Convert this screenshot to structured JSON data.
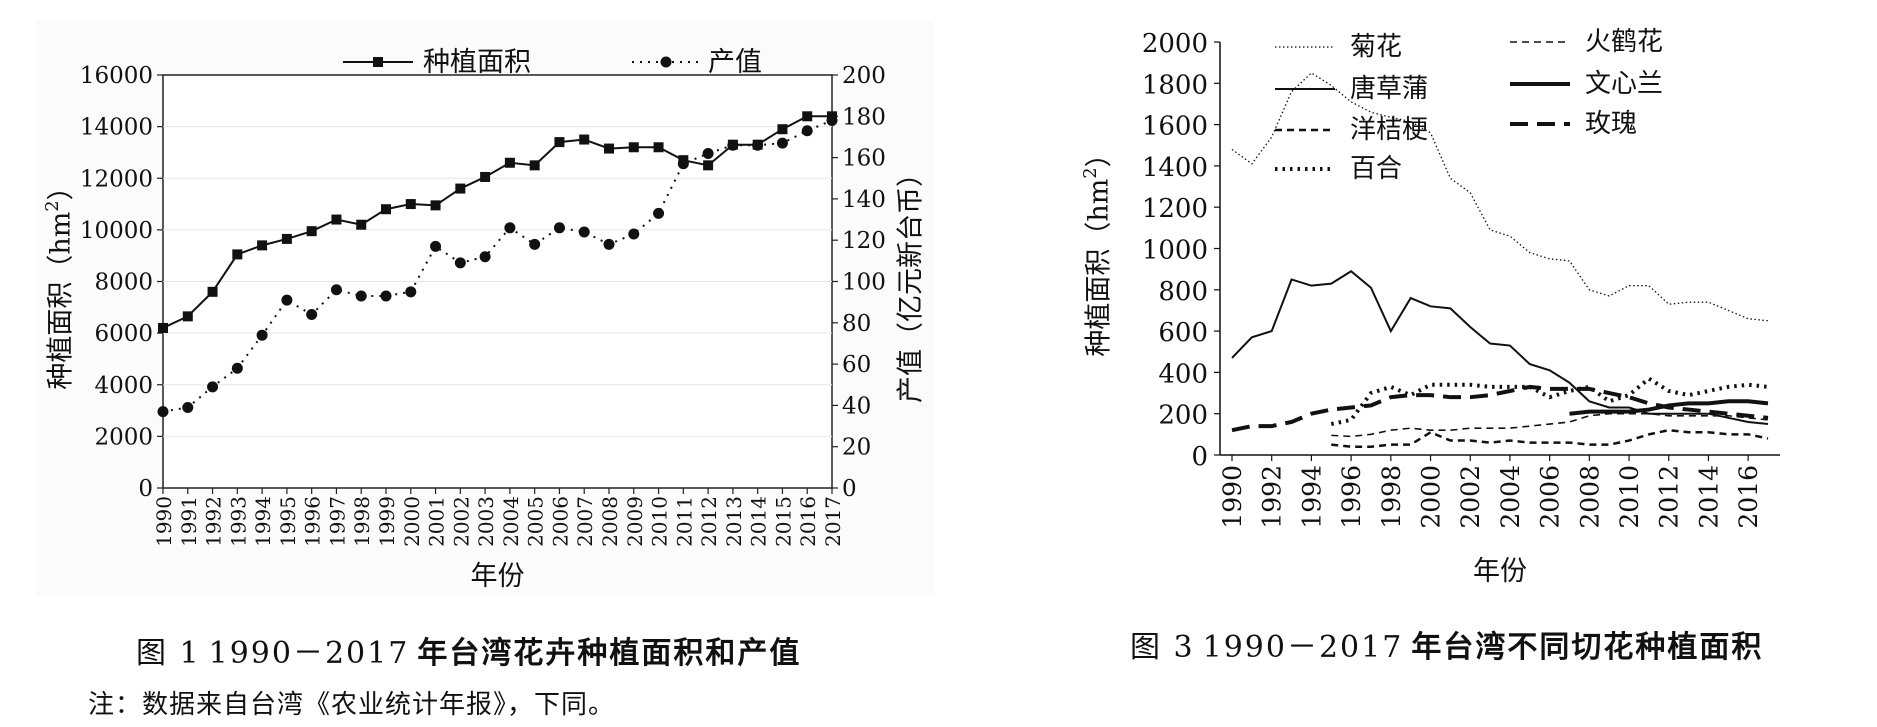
{
  "figure1": {
    "caption_label": "图 1",
    "caption_years": "1990－2017",
    "caption_text": "年台湾花卉种植面积和产值",
    "chart_data": {
      "type": "line",
      "x": [
        1990,
        1991,
        1992,
        1993,
        1994,
        1995,
        1996,
        1997,
        1998,
        1999,
        2000,
        2001,
        2002,
        2003,
        2004,
        2005,
        2006,
        2007,
        2008,
        2009,
        2010,
        2011,
        2012,
        2013,
        2014,
        2015,
        2016,
        2017
      ],
      "xlabel": "年份",
      "ylabel": "种植面积（hm²）",
      "y2label": "产值（亿元新台币）",
      "ylim": [
        0,
        16000
      ],
      "y2lim": [
        0,
        200
      ],
      "yticks": [
        "0",
        "2000",
        "4000",
        "6000",
        "8000",
        "10000",
        "12000",
        "14000",
        "16000"
      ],
      "y2ticks": [
        "0",
        "20",
        "40",
        "60",
        "80",
        "100",
        "120",
        "140",
        "160",
        "180",
        "200"
      ],
      "legend_placement": "top",
      "series": [
        {
          "name": "种植面积",
          "axis": "left",
          "style": "solid-square",
          "values": [
            6200,
            6650,
            7600,
            9050,
            9400,
            9650,
            9950,
            10400,
            10200,
            10800,
            11000,
            10950,
            11600,
            12050,
            12600,
            12500,
            13400,
            13500,
            13150,
            13200,
            13200,
            12700,
            12500,
            13300,
            13300,
            13900,
            14400,
            14400
          ]
        },
        {
          "name": "产值",
          "axis": "right",
          "style": "dotted-circle",
          "values": [
            37,
            39,
            49,
            58,
            74,
            91,
            84,
            96,
            93,
            93,
            95,
            117,
            109,
            112,
            126,
            118,
            126,
            124,
            118,
            123,
            133,
            157,
            162,
            166,
            166,
            167,
            173,
            178
          ]
        }
      ]
    }
  },
  "figure3": {
    "caption_label": "图 3",
    "caption_years": "1990－2017",
    "caption_text": "年台湾不同切花种植面积",
    "chart_data": {
      "type": "line",
      "xlabel": "年份",
      "ylabel": "种植面积（hm²）",
      "ylim": [
        0,
        2000
      ],
      "yticks": [
        "0",
        "200",
        "400",
        "600",
        "800",
        "1000",
        "1200",
        "1400",
        "1600",
        "1800",
        "2000"
      ],
      "xticks": [
        "1990",
        "1992",
        "1994",
        "1996",
        "1998",
        "2000",
        "2002",
        "2004",
        "2006",
        "2008",
        "2010",
        "2012",
        "2014",
        "2016"
      ],
      "legend_placement": "top-right",
      "series": [
        {
          "name": "菊花",
          "style": "fine-dot",
          "x": [
            1990,
            1991,
            1992,
            1993,
            1994,
            1995,
            1996,
            1997,
            1998,
            1999,
            2000,
            2001,
            2002,
            2003,
            2004,
            2005,
            2006,
            2007,
            2008,
            2009,
            2010,
            2011,
            2012,
            2013,
            2014,
            2015,
            2016,
            2017
          ],
          "values": [
            1480,
            1410,
            1540,
            1760,
            1850,
            1790,
            1710,
            1660,
            1635,
            1615,
            1560,
            1340,
            1270,
            1090,
            1060,
            980,
            950,
            940,
            800,
            770,
            820,
            820,
            730,
            740,
            740,
            700,
            660,
            650
          ]
        },
        {
          "name": "唐草蒲",
          "style": "solid",
          "x": [
            1990,
            1991,
            1992,
            1993,
            1994,
            1995,
            1996,
            1997,
            1998,
            1999,
            2000,
            2001,
            2002,
            2003,
            2004,
            2005,
            2006,
            2007,
            2008,
            2009,
            2010,
            2011,
            2012,
            2013,
            2014,
            2015,
            2016,
            2017
          ],
          "values": [
            470,
            570,
            600,
            850,
            820,
            830,
            890,
            810,
            600,
            760,
            720,
            710,
            620,
            540,
            530,
            440,
            410,
            350,
            260,
            230,
            230,
            200,
            200,
            200,
            200,
            180,
            160,
            150
          ]
        },
        {
          "name": "洋桔梗",
          "style": "short-dash",
          "x": [
            1995,
            1996,
            1997,
            1998,
            1999,
            2000,
            2001,
            2002,
            2003,
            2004,
            2005,
            2006,
            2007,
            2008,
            2009,
            2010,
            2011,
            2012,
            2013,
            2014,
            2015,
            2016,
            2017
          ],
          "values": [
            50,
            40,
            40,
            50,
            50,
            110,
            70,
            70,
            60,
            70,
            60,
            60,
            60,
            50,
            50,
            70,
            100,
            120,
            110,
            110,
            100,
            100,
            80
          ]
        },
        {
          "name": "百合",
          "style": "dot",
          "x": [
            1995,
            1996,
            1997,
            1998,
            1999,
            2000,
            2001,
            2002,
            2003,
            2004,
            2005,
            2006,
            2007,
            2008,
            2009,
            2010,
            2011,
            2012,
            2013,
            2014,
            2015,
            2016,
            2017
          ],
          "values": [
            150,
            170,
            300,
            330,
            290,
            340,
            340,
            340,
            330,
            330,
            330,
            280,
            310,
            330,
            260,
            290,
            370,
            310,
            290,
            310,
            330,
            340,
            330
          ]
        },
        {
          "name": "火鹤花",
          "style": "dash",
          "x": [
            1995,
            1996,
            1997,
            1998,
            1999,
            2000,
            2001,
            2002,
            2003,
            2004,
            2005,
            2006,
            2007,
            2008,
            2009,
            2010,
            2011,
            2012,
            2013,
            2014,
            2015,
            2016,
            2017
          ],
          "values": [
            95,
            90,
            100,
            120,
            130,
            120,
            120,
            130,
            130,
            130,
            140,
            150,
            160,
            190,
            200,
            200,
            200,
            190,
            190,
            190,
            190,
            180,
            170
          ]
        },
        {
          "name": "文心兰",
          "style": "thick-solid",
          "x": [
            2007,
            2008,
            2009,
            2010,
            2011,
            2012,
            2013,
            2014,
            2015,
            2016,
            2017
          ],
          "values": [
            200,
            210,
            210,
            210,
            220,
            240,
            250,
            250,
            260,
            260,
            250
          ]
        },
        {
          "name": "玫瑰",
          "style": "long-dash",
          "x": [
            1990,
            1991,
            1992,
            1993,
            1994,
            1995,
            1996,
            1997,
            1998,
            1999,
            2000,
            2001,
            2002,
            2003,
            2004,
            2005,
            2006,
            2007,
            2008,
            2009,
            2010,
            2011,
            2012,
            2013,
            2014,
            2015,
            2016,
            2017
          ],
          "values": [
            120,
            140,
            140,
            160,
            200,
            220,
            230,
            240,
            280,
            290,
            290,
            280,
            280,
            290,
            310,
            330,
            320,
            320,
            320,
            300,
            280,
            250,
            230,
            220,
            210,
            200,
            190,
            180
          ]
        }
      ]
    }
  },
  "note": "注：数据来自台湾《农业统计年报》，下同。"
}
